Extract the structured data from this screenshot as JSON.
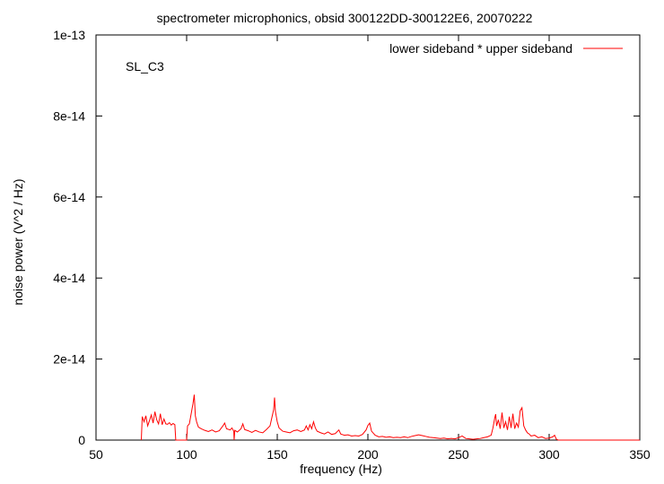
{
  "chart_data": {
    "type": "line",
    "title": "spectrometer microphonics, obsid 300122DD-300122E6, 20070222",
    "xlabel": "frequency (Hz)",
    "ylabel": "noise power (V^2 / Hz)",
    "xlim": [
      50,
      350
    ],
    "ylim": [
      0,
      1e-13
    ],
    "x_ticks": [
      50,
      100,
      150,
      200,
      250,
      300,
      350
    ],
    "x_tick_labels": [
      "50",
      "100",
      "150",
      "200",
      "250",
      "300",
      "350"
    ],
    "y_ticks": [
      0,
      2e-14,
      4e-14,
      6e-14,
      8e-14,
      1e-13
    ],
    "y_tick_labels": [
      "0",
      "2e-14",
      "4e-14",
      "6e-14",
      "8e-14",
      "1e-13"
    ],
    "grid": false,
    "legend_position": "top-right",
    "annotation": "SL_C3",
    "series": [
      {
        "name": "lower sideband * upper sideband",
        "color": "#ff0000",
        "points": [
          [
            75,
            0
          ],
          [
            75.5,
            5.8e-15
          ],
          [
            76.5,
            4.5e-15
          ],
          [
            77.5,
            6e-15
          ],
          [
            78.5,
            3.5e-15
          ],
          [
            79.5,
            4.8e-15
          ],
          [
            80.5,
            6.2e-15
          ],
          [
            81.5,
            4.2e-15
          ],
          [
            82.5,
            7e-15
          ],
          [
            83.5,
            5e-15
          ],
          [
            84.5,
            4e-15
          ],
          [
            85.5,
            6.5e-15
          ],
          [
            86.5,
            3.8e-15
          ],
          [
            87.5,
            5.2e-15
          ],
          [
            88.5,
            4e-15
          ],
          [
            89.5,
            3.9e-15
          ],
          [
            90.5,
            4.3e-15
          ],
          [
            91.5,
            3.7e-15
          ],
          [
            92.5,
            4.1e-15
          ],
          [
            93.5,
            3.8e-15
          ],
          [
            94,
            0
          ],
          [
            100,
            0
          ],
          [
            100.5,
            3.5e-15
          ],
          [
            101.5,
            4e-15
          ],
          [
            102.5,
            6.5e-15
          ],
          [
            103.5,
            9e-15
          ],
          [
            104.2,
            1.12e-14
          ],
          [
            104.8,
            6e-15
          ],
          [
            105.5,
            4.5e-15
          ],
          [
            106.5,
            3.2e-15
          ],
          [
            108,
            2.8e-15
          ],
          [
            110,
            2.4e-15
          ],
          [
            112,
            2.1e-15
          ],
          [
            114,
            2.5e-15
          ],
          [
            116,
            2e-15
          ],
          [
            118,
            2.3e-15
          ],
          [
            120,
            3.5e-15
          ],
          [
            121,
            4.2e-15
          ],
          [
            122,
            2.8e-15
          ],
          [
            124,
            2.5e-15
          ],
          [
            125,
            3e-15
          ],
          [
            126,
            2.2e-15
          ],
          [
            126.2,
            0
          ],
          [
            126.6,
            2.4e-15
          ],
          [
            128,
            2e-15
          ],
          [
            130,
            2.8e-15
          ],
          [
            131,
            4e-15
          ],
          [
            132,
            2.6e-15
          ],
          [
            134,
            2.3e-15
          ],
          [
            136,
            1.9e-15
          ],
          [
            138,
            2.4e-15
          ],
          [
            140,
            2e-15
          ],
          [
            142,
            1.8e-15
          ],
          [
            144,
            2.6e-15
          ],
          [
            146,
            3.5e-15
          ],
          [
            147,
            5.5e-15
          ],
          [
            148,
            7.5e-15
          ],
          [
            148.5,
            1.05e-14
          ],
          [
            149,
            7e-15
          ],
          [
            150,
            4.5e-15
          ],
          [
            151,
            3e-15
          ],
          [
            153,
            2.2e-15
          ],
          [
            155,
            2e-15
          ],
          [
            157,
            1.8e-15
          ],
          [
            159,
            2.3e-15
          ],
          [
            161,
            2.5e-15
          ],
          [
            163,
            2.1e-15
          ],
          [
            165,
            2.5e-15
          ],
          [
            166,
            3.5e-15
          ],
          [
            167,
            2.5e-15
          ],
          [
            168,
            3.8e-15
          ],
          [
            169,
            2.8e-15
          ],
          [
            170,
            4.5e-15
          ],
          [
            171,
            3e-15
          ],
          [
            172,
            2.2e-15
          ],
          [
            174,
            1.8e-15
          ],
          [
            176,
            1.5e-15
          ],
          [
            178,
            2e-15
          ],
          [
            180,
            1.4e-15
          ],
          [
            182,
            1.6e-15
          ],
          [
            184,
            2.5e-15
          ],
          [
            185,
            1.5e-15
          ],
          [
            187,
            1.2e-15
          ],
          [
            189,
            1.3e-15
          ],
          [
            191,
            1e-15
          ],
          [
            193,
            1.1e-15
          ],
          [
            195,
            1e-15
          ],
          [
            197,
            1.4e-15
          ],
          [
            199,
            2.5e-15
          ],
          [
            200,
            3.6e-15
          ],
          [
            201,
            4.2e-15
          ],
          [
            202,
            2.2e-15
          ],
          [
            204,
            1.2e-15
          ],
          [
            206,
            8e-16
          ],
          [
            208,
            9e-16
          ],
          [
            210,
            7e-16
          ],
          [
            212,
            8e-16
          ],
          [
            214,
            6e-16
          ],
          [
            216,
            7e-16
          ],
          [
            218,
            6e-16
          ],
          [
            220,
            8e-16
          ],
          [
            222,
            6e-16
          ],
          [
            224,
            9e-16
          ],
          [
            226,
            1.1e-15
          ],
          [
            228,
            1.3e-15
          ],
          [
            230,
            1.1e-15
          ],
          [
            232,
            9e-16
          ],
          [
            234,
            7e-16
          ],
          [
            236,
            6e-16
          ],
          [
            238,
            5e-16
          ],
          [
            240,
            4e-16
          ],
          [
            242,
            5e-16
          ],
          [
            244,
            3e-16
          ],
          [
            246,
            4e-16
          ],
          [
            248,
            3e-16
          ],
          [
            250,
            6e-16
          ],
          [
            252,
            1e-15
          ],
          [
            254,
            4e-16
          ],
          [
            256,
            3e-16
          ],
          [
            258,
            2e-16
          ],
          [
            260,
            3e-16
          ],
          [
            262,
            4e-16
          ],
          [
            264,
            6e-16
          ],
          [
            266,
            8e-16
          ],
          [
            268,
            1.2e-15
          ],
          [
            269,
            3e-15
          ],
          [
            270,
            5.5e-15
          ],
          [
            270.5,
            6.4e-15
          ],
          [
            271,
            3.5e-15
          ],
          [
            272,
            5e-15
          ],
          [
            273,
            2.8e-15
          ],
          [
            274,
            6.8e-15
          ],
          [
            275,
            3e-15
          ],
          [
            276,
            4.5e-15
          ],
          [
            277,
            2.5e-15
          ],
          [
            278,
            5.8e-15
          ],
          [
            279,
            3e-15
          ],
          [
            280,
            6.5e-15
          ],
          [
            281,
            2.8e-15
          ],
          [
            282,
            4.2e-15
          ],
          [
            283,
            3.2e-15
          ],
          [
            284,
            7.2e-15
          ],
          [
            285,
            8e-15
          ],
          [
            286,
            3.5e-15
          ],
          [
            287,
            2.5e-15
          ],
          [
            288,
            1.8e-15
          ],
          [
            289,
            1.5e-15
          ],
          [
            290,
            1e-15
          ],
          [
            292,
            1.2e-15
          ],
          [
            294,
            6e-16
          ],
          [
            296,
            8e-16
          ],
          [
            298,
            4e-16
          ],
          [
            300,
            5e-16
          ],
          [
            302,
            8e-16
          ],
          [
            303,
            1.2e-15
          ],
          [
            304,
            2e-16
          ],
          [
            305,
            0
          ],
          [
            350,
            0
          ]
        ]
      }
    ]
  }
}
